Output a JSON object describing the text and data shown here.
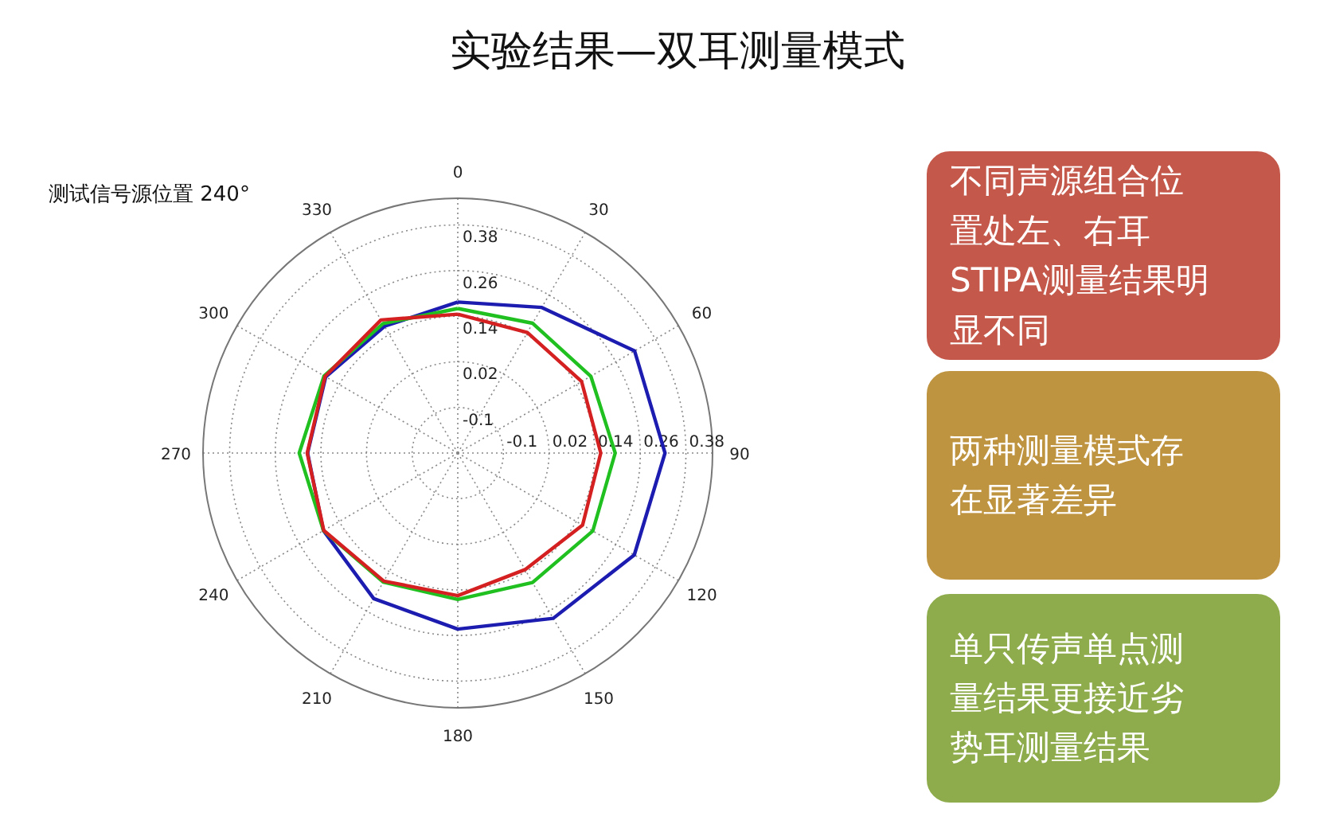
{
  "chart_data": {
    "type": "radar",
    "title": "实验结果—双耳测量模式",
    "categories": [
      "0",
      "30",
      "60",
      "90",
      "120",
      "150",
      "180",
      "210",
      "240",
      "270",
      "300",
      "330"
    ],
    "series": [
      {
        "color": "#1c1cb0",
        "values": [
          0.177,
          0.222,
          0.317,
          0.325,
          0.316,
          0.282,
          0.243,
          0.222,
          0.188,
          0.175,
          0.181,
          0.165
        ]
      },
      {
        "color": "#20c020",
        "values": [
          0.16,
          0.174,
          0.184,
          0.194,
          0.19,
          0.173,
          0.165,
          0.172,
          0.188,
          0.197,
          0.186,
          0.173
        ]
      },
      {
        "color": "#d42020",
        "values": [
          0.145,
          0.146,
          0.156,
          0.156,
          0.159,
          0.134,
          0.155,
          0.169,
          0.187,
          0.176,
          0.183,
          0.184
        ]
      }
    ],
    "ylim": [
      -0.22,
      0.45
    ],
    "yticks": [
      -0.1,
      0.02,
      0.14,
      0.26,
      0.38
    ],
    "grid": true,
    "annotations": [
      "测试信号源位置 240°",
      "不同声源组合位置处左、右耳STIPA测量结果明显不同",
      "两种测量模式存在显著差异",
      "单只传声单点测量结果更接近劣势耳测量结果",
      "-0.1",
      "0.02",
      "0.14",
      "0.26",
      "0.38"
    ]
  }
}
